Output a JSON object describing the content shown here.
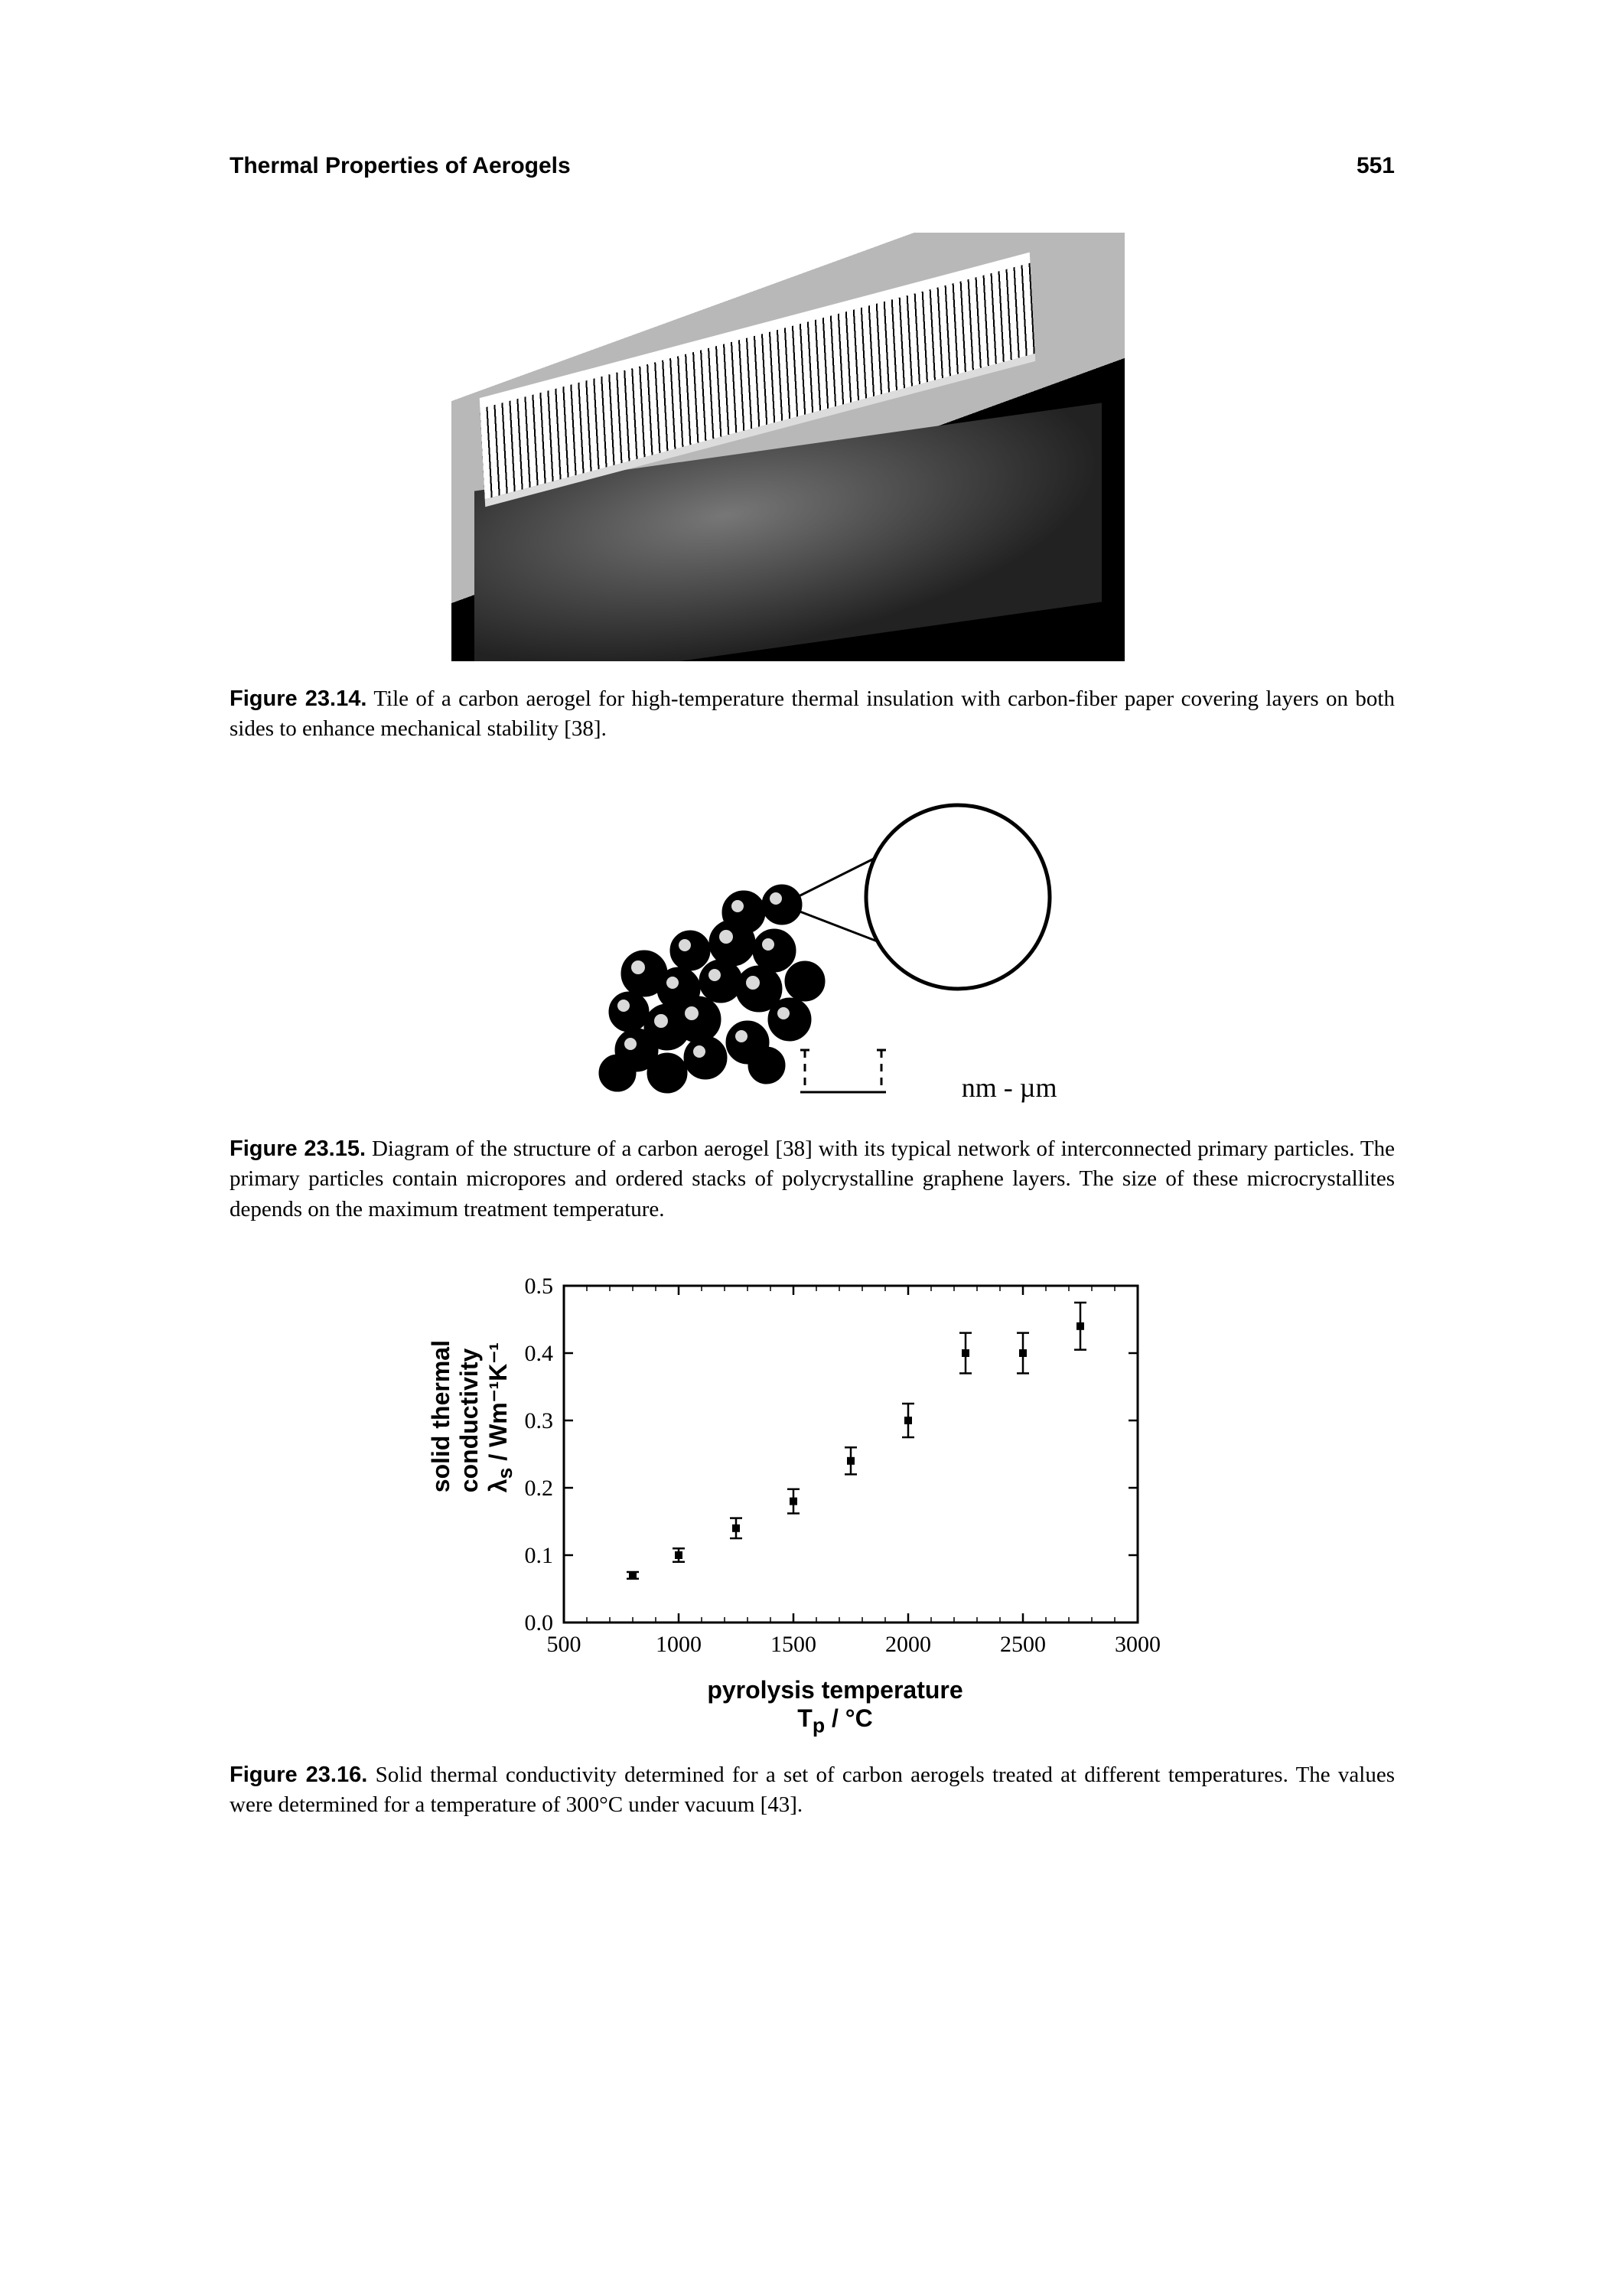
{
  "header": {
    "running_title": "Thermal Properties of Aerogels",
    "page_number": "551"
  },
  "fig14": {
    "label": "Figure 23.14.",
    "caption": "Tile of a carbon aerogel for high-temperature thermal insulation with carbon-fiber paper covering layers on both sides to enhance mechanical stability [38]."
  },
  "fig15": {
    "label": "Figure 23.15.",
    "caption": "Diagram of the structure of a carbon aerogel [38] with its typical network of interconnected primary particles. The primary particles contain micropores and ordered stacks of polycrystalline graphene layers. The size of these microcrystallites depends on the maximum treatment temperature.",
    "scale_label": "nm - µm"
  },
  "fig16": {
    "label": "Figure 23.16.",
    "caption": "Solid thermal conductivity determined for a set of carbon aerogels treated at different temperatures. The values were determined for a temperature of 300°C under vacuum [43].",
    "chart": {
      "type": "scatter-error",
      "xlabel_line1": "pyrolysis temperature",
      "xlabel_line2": "T",
      "xlabel_sub": "p",
      "xlabel_unit": " / °C",
      "ylabel_line1": "solid thermal",
      "ylabel_line2": "conductivity",
      "ylabel_sym": "λ",
      "ylabel_sub": "s",
      "ylabel_unit": " / Wm⁻¹K⁻¹",
      "xlim": [
        500,
        3000
      ],
      "ylim": [
        0.0,
        0.5
      ],
      "xticks": [
        500,
        1000,
        1500,
        2000,
        2500,
        3000
      ],
      "yticks": [
        0.0,
        0.1,
        0.2,
        0.3,
        0.4,
        0.5
      ],
      "marker": "square",
      "marker_size": 10,
      "marker_color": "#000000",
      "error_color": "#000000",
      "axis_color": "#000000",
      "background_color": "#ffffff",
      "tick_fontsize": 30,
      "label_fontsize": 32,
      "points": [
        {
          "x": 800,
          "y": 0.07,
          "err": 0.005
        },
        {
          "x": 1000,
          "y": 0.1,
          "err": 0.01
        },
        {
          "x": 1250,
          "y": 0.14,
          "err": 0.015
        },
        {
          "x": 1500,
          "y": 0.18,
          "err": 0.018
        },
        {
          "x": 1750,
          "y": 0.24,
          "err": 0.02
        },
        {
          "x": 2000,
          "y": 0.3,
          "err": 0.025
        },
        {
          "x": 2250,
          "y": 0.4,
          "err": 0.03
        },
        {
          "x": 2500,
          "y": 0.4,
          "err": 0.03
        },
        {
          "x": 2750,
          "y": 0.44,
          "err": 0.035
        }
      ]
    }
  }
}
